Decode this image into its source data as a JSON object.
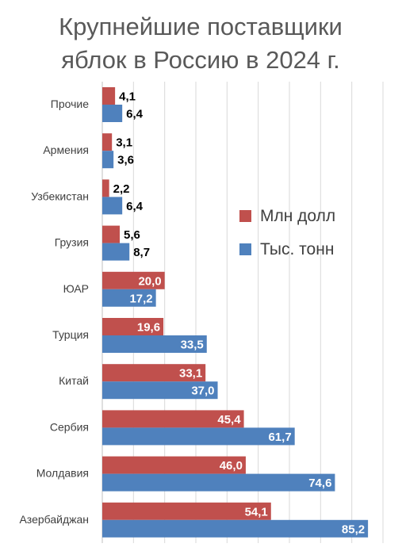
{
  "chart_data": {
    "type": "bar",
    "orientation": "horizontal",
    "title_lines": [
      "Крупнейшие поставщики",
      "яблок в Россию в 2024 г."
    ],
    "categories": [
      "Прочие",
      "Армения",
      "Узбекистан",
      "Грузия",
      "ЮАР",
      "Турция",
      "Китай",
      "Сербия",
      "Молдавия",
      "Азербайджан"
    ],
    "series": [
      {
        "name": "Млн долл",
        "color": "#c0504d",
        "values": [
          4.1,
          3.1,
          2.2,
          5.6,
          20.0,
          19.6,
          33.1,
          45.4,
          46.0,
          54.1
        ],
        "labels": [
          "4,1",
          "3,1",
          "2,2",
          "5,6",
          "20,0",
          "19,6",
          "33,1",
          "45,4",
          "46,0",
          "54,1"
        ]
      },
      {
        "name": "Тыс. тонн",
        "color": "#4f81bd",
        "values": [
          6.4,
          3.6,
          6.4,
          8.7,
          17.2,
          33.5,
          37.0,
          61.7,
          74.6,
          85.2
        ],
        "labels": [
          "6,4",
          "3,6",
          "6,4",
          "8,7",
          "17,2",
          "33,5",
          "37,0",
          "61,7",
          "74,6",
          "85,2"
        ]
      }
    ],
    "xlim": [
      0,
      90
    ],
    "grid": true,
    "legend_position": "right-middle"
  }
}
